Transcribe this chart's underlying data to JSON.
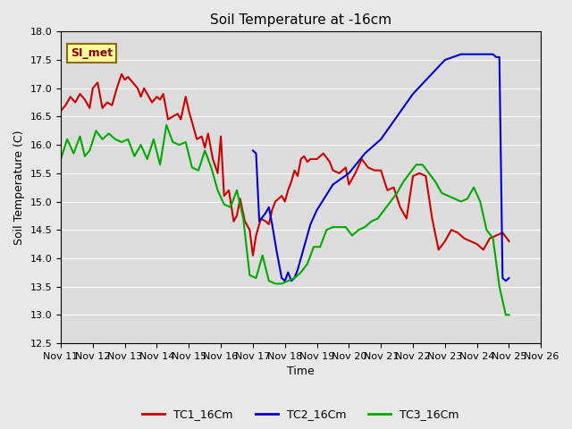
{
  "title": "Soil Temperature at -16cm",
  "ylabel": "Soil Temperature (C)",
  "xlabel": "Time",
  "ylim": [
    12.5,
    18.0
  ],
  "yticks": [
    12.5,
    13.0,
    13.5,
    14.0,
    14.5,
    15.0,
    15.5,
    16.0,
    16.5,
    17.0,
    17.5,
    18.0
  ],
  "xtick_labels": [
    "Nov 11",
    "Nov 12",
    "Nov 13",
    "Nov 14",
    "Nov 15",
    "Nov 16",
    "Nov 17",
    "Nov 18",
    "Nov 19",
    "Nov 20",
    "Nov 21",
    "Nov 22",
    "Nov 23",
    "Nov 24",
    "Nov 25",
    "Nov 26"
  ],
  "bg_color": "#e8e8e8",
  "plot_bg": "#dcdcdc",
  "SI_met_label": "SI_met",
  "tc1_color": "#cc0000",
  "tc2_color": "#0000cc",
  "tc3_color": "#00aa00",
  "tc1_label": "TC1_16Cm",
  "tc2_label": "TC2_16Cm",
  "tc3_label": "TC3_16Cm",
  "tc1_x": [
    0,
    0.15,
    0.3,
    0.45,
    0.6,
    0.75,
    0.9,
    1.0,
    1.15,
    1.3,
    1.45,
    1.6,
    1.75,
    1.9,
    2.0,
    2.1,
    2.25,
    2.4,
    2.5,
    2.6,
    2.7,
    2.85,
    3.0,
    3.1,
    3.2,
    3.35,
    3.5,
    3.65,
    3.75,
    3.9,
    4.0,
    4.1,
    4.25,
    4.4,
    4.5,
    4.6,
    4.75,
    4.9,
    5.0,
    5.1,
    5.25,
    5.4,
    5.5,
    5.6,
    5.75,
    5.9,
    6.0,
    6.1,
    6.25,
    6.4,
    6.5,
    6.6,
    6.7,
    6.8,
    6.9,
    7.0,
    7.1,
    7.2,
    7.3,
    7.4,
    7.5,
    7.6,
    7.7,
    7.8,
    8.0,
    8.2,
    8.4,
    8.5,
    8.7,
    8.9,
    9.0,
    9.2,
    9.4,
    9.6,
    9.8,
    10.0,
    10.2,
    10.4,
    10.6,
    10.8,
    11.0,
    11.2,
    11.4,
    11.6,
    11.8,
    12.0,
    12.2,
    12.4,
    12.6,
    12.8,
    13.0,
    13.2,
    13.4,
    13.6,
    13.8,
    14.0
  ],
  "tc1_y": [
    16.6,
    16.7,
    16.85,
    16.75,
    16.9,
    16.8,
    16.65,
    17.0,
    17.1,
    16.65,
    16.75,
    16.7,
    17.0,
    17.25,
    17.15,
    17.2,
    17.1,
    17.0,
    16.85,
    17.0,
    16.9,
    16.75,
    16.85,
    16.8,
    16.9,
    16.45,
    16.5,
    16.55,
    16.45,
    16.85,
    16.6,
    16.4,
    16.1,
    16.15,
    15.95,
    16.2,
    15.75,
    15.5,
    16.15,
    15.1,
    15.2,
    14.65,
    14.75,
    15.05,
    14.65,
    14.5,
    14.05,
    14.4,
    14.7,
    14.65,
    14.6,
    14.85,
    15.0,
    15.05,
    15.1,
    15.0,
    15.2,
    15.35,
    15.55,
    15.45,
    15.75,
    15.8,
    15.7,
    15.75,
    15.75,
    15.85,
    15.7,
    15.55,
    15.5,
    15.6,
    15.3,
    15.5,
    15.75,
    15.6,
    15.55,
    15.55,
    15.2,
    15.25,
    14.9,
    14.7,
    15.45,
    15.5,
    15.45,
    14.7,
    14.15,
    14.3,
    14.5,
    14.45,
    14.35,
    14.3,
    14.25,
    14.15,
    14.35,
    14.4,
    14.45,
    14.3
  ],
  "tc2_x": [
    6.0,
    6.1,
    6.2,
    6.4,
    6.5,
    6.6,
    6.75,
    6.9,
    7.0,
    7.1,
    7.2,
    7.3,
    7.4,
    7.5,
    7.6,
    7.7,
    7.8,
    8.0,
    8.5,
    9.0,
    9.5,
    10.0,
    10.5,
    11.0,
    11.5,
    12.0,
    12.5,
    13.0,
    13.5,
    13.6,
    13.7,
    13.8,
    13.9,
    14.0
  ],
  "tc2_y": [
    15.9,
    15.85,
    14.65,
    14.8,
    14.9,
    14.6,
    14.1,
    13.65,
    13.6,
    13.75,
    13.6,
    13.65,
    13.8,
    14.0,
    14.2,
    14.4,
    14.6,
    14.85,
    15.3,
    15.5,
    15.85,
    16.1,
    16.5,
    16.9,
    17.2,
    17.5,
    17.6,
    17.6,
    17.6,
    17.55,
    17.55,
    13.65,
    13.6,
    13.65
  ],
  "tc3_x": [
    0,
    0.2,
    0.4,
    0.6,
    0.75,
    0.9,
    1.1,
    1.3,
    1.5,
    1.7,
    1.9,
    2.1,
    2.3,
    2.5,
    2.7,
    2.9,
    3.1,
    3.3,
    3.5,
    3.7,
    3.9,
    4.1,
    4.3,
    4.5,
    4.7,
    4.9,
    5.1,
    5.3,
    5.5,
    5.7,
    5.9,
    6.1,
    6.3,
    6.5,
    6.7,
    6.9,
    7.1,
    7.3,
    7.5,
    7.7,
    7.9,
    8.1,
    8.3,
    8.5,
    8.7,
    8.9,
    9.1,
    9.3,
    9.5,
    9.7,
    9.9,
    10.1,
    10.3,
    10.5,
    10.7,
    10.9,
    11.1,
    11.3,
    11.5,
    11.7,
    11.9,
    12.1,
    12.3,
    12.5,
    12.7,
    12.9,
    13.1,
    13.3,
    13.5,
    13.7,
    13.9,
    14.0
  ],
  "tc3_y": [
    15.75,
    16.1,
    15.85,
    16.15,
    15.8,
    15.9,
    16.25,
    16.1,
    16.2,
    16.1,
    16.05,
    16.1,
    15.8,
    16.0,
    15.75,
    16.1,
    15.65,
    16.35,
    16.05,
    16.0,
    16.05,
    15.6,
    15.55,
    15.9,
    15.6,
    15.2,
    14.95,
    14.9,
    15.2,
    14.7,
    13.7,
    13.65,
    14.05,
    13.6,
    13.55,
    13.55,
    13.6,
    13.65,
    13.75,
    13.9,
    14.2,
    14.2,
    14.5,
    14.55,
    14.55,
    14.55,
    14.4,
    14.5,
    14.55,
    14.65,
    14.7,
    14.85,
    15.0,
    15.15,
    15.35,
    15.5,
    15.65,
    15.65,
    15.5,
    15.35,
    15.15,
    15.1,
    15.05,
    15.0,
    15.05,
    15.25,
    15.0,
    14.5,
    14.35,
    13.5,
    13.0,
    13.0
  ]
}
